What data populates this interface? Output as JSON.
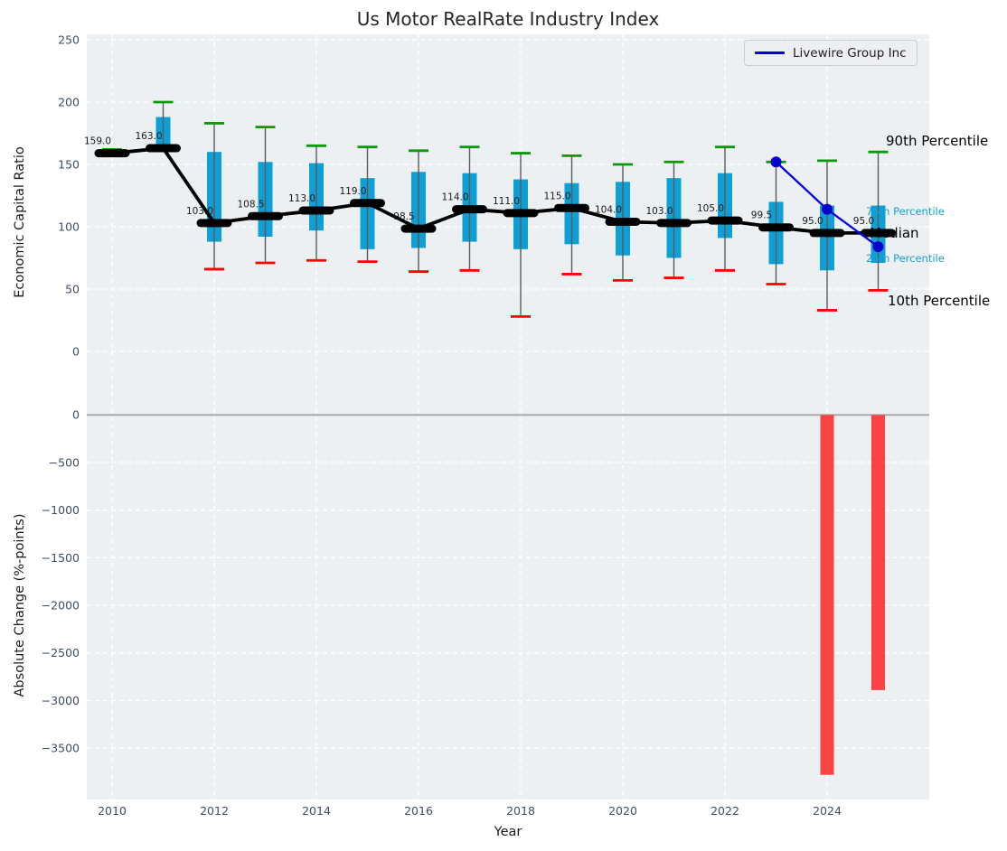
{
  "title": "Us Motor RealRate Industry Index",
  "legend": {
    "label": "Livewire Group Inc"
  },
  "annotations": {
    "p90": {
      "label": "90th Percentile"
    },
    "p75": {
      "label": "75th Percentile"
    },
    "median": {
      "label": "Median"
    },
    "p25": {
      "label": "25th Percentile"
    },
    "p10": {
      "label": "10th Percentile"
    }
  },
  "axes": {
    "top": {
      "ylabel": "Economic Capital Ratio"
    },
    "bottom": {
      "ylabel": "Absolute Change (%-points)",
      "xlabel": "Year"
    }
  },
  "chart_data": [
    {
      "type": "boxplot",
      "title": "Us Motor RealRate Industry Index",
      "ylabel": "Economic Capital Ratio",
      "xlabel": "Year",
      "grid": true,
      "legend_position": "upper right",
      "years": [
        2010,
        2011,
        2012,
        2013,
        2014,
        2015,
        2016,
        2017,
        2018,
        2019,
        2020,
        2021,
        2022,
        2023,
        2024,
        2025
      ],
      "xticks": [
        2010,
        2012,
        2014,
        2016,
        2018,
        2020,
        2022,
        2024
      ],
      "yticks": [
        0,
        50,
        100,
        150,
        200,
        250
      ],
      "ylim": [
        -53,
        254
      ],
      "p90": [
        162,
        200,
        183,
        180,
        165,
        164,
        161,
        164,
        159,
        157,
        150,
        152,
        164,
        152,
        153,
        160
      ],
      "p75": [
        160,
        188,
        160,
        152,
        151,
        139,
        144,
        143,
        138,
        135,
        136,
        139,
        143,
        120,
        117,
        117
      ],
      "median": [
        159.0,
        163.0,
        103.0,
        108.5,
        113.0,
        119.0,
        98.5,
        114.0,
        111.0,
        115.0,
        104.0,
        103.0,
        105.0,
        99.5,
        95.0,
        95.0
      ],
      "p25": [
        158,
        162,
        88,
        92,
        97,
        82,
        83,
        88,
        82,
        86,
        77,
        75,
        91,
        70,
        65,
        71
      ],
      "p10": [
        157,
        161,
        66,
        71,
        73,
        72,
        64,
        65,
        28,
        62,
        57,
        59,
        65,
        54,
        33,
        49
      ],
      "series": [
        {
          "name": "Livewire Group Inc",
          "type": "line",
          "x": [
            2023,
            2024,
            2025
          ],
          "values": [
            152,
            114,
            84
          ]
        }
      ]
    },
    {
      "type": "bar",
      "ylabel": "Absolute Change (%-points)",
      "xlabel": "Year",
      "grid": true,
      "x": [
        2024,
        2025
      ],
      "values": [
        -3780,
        -2890
      ],
      "yticks": [
        0,
        -500,
        -1000,
        -1500,
        -2000,
        -2500,
        -3000,
        -3500
      ],
      "ylim": [
        -4040,
        40
      ]
    }
  ],
  "colors": {
    "axes_background": "#edf0f2",
    "grid": "#ffffff",
    "box_fill": "#0d9fd6",
    "whisker": "#5a5a5a",
    "cap_p90": "#0a9a0a",
    "cap_p10": "#ff0000",
    "median": "#000000",
    "company_line": "#0000ee",
    "company_marker": "#0000cd",
    "bar_negative": "#fa4343",
    "zero_line": "#a6a6a6",
    "tick_label": "#3e4d63",
    "annotation_cyan": "#18a2cf"
  }
}
